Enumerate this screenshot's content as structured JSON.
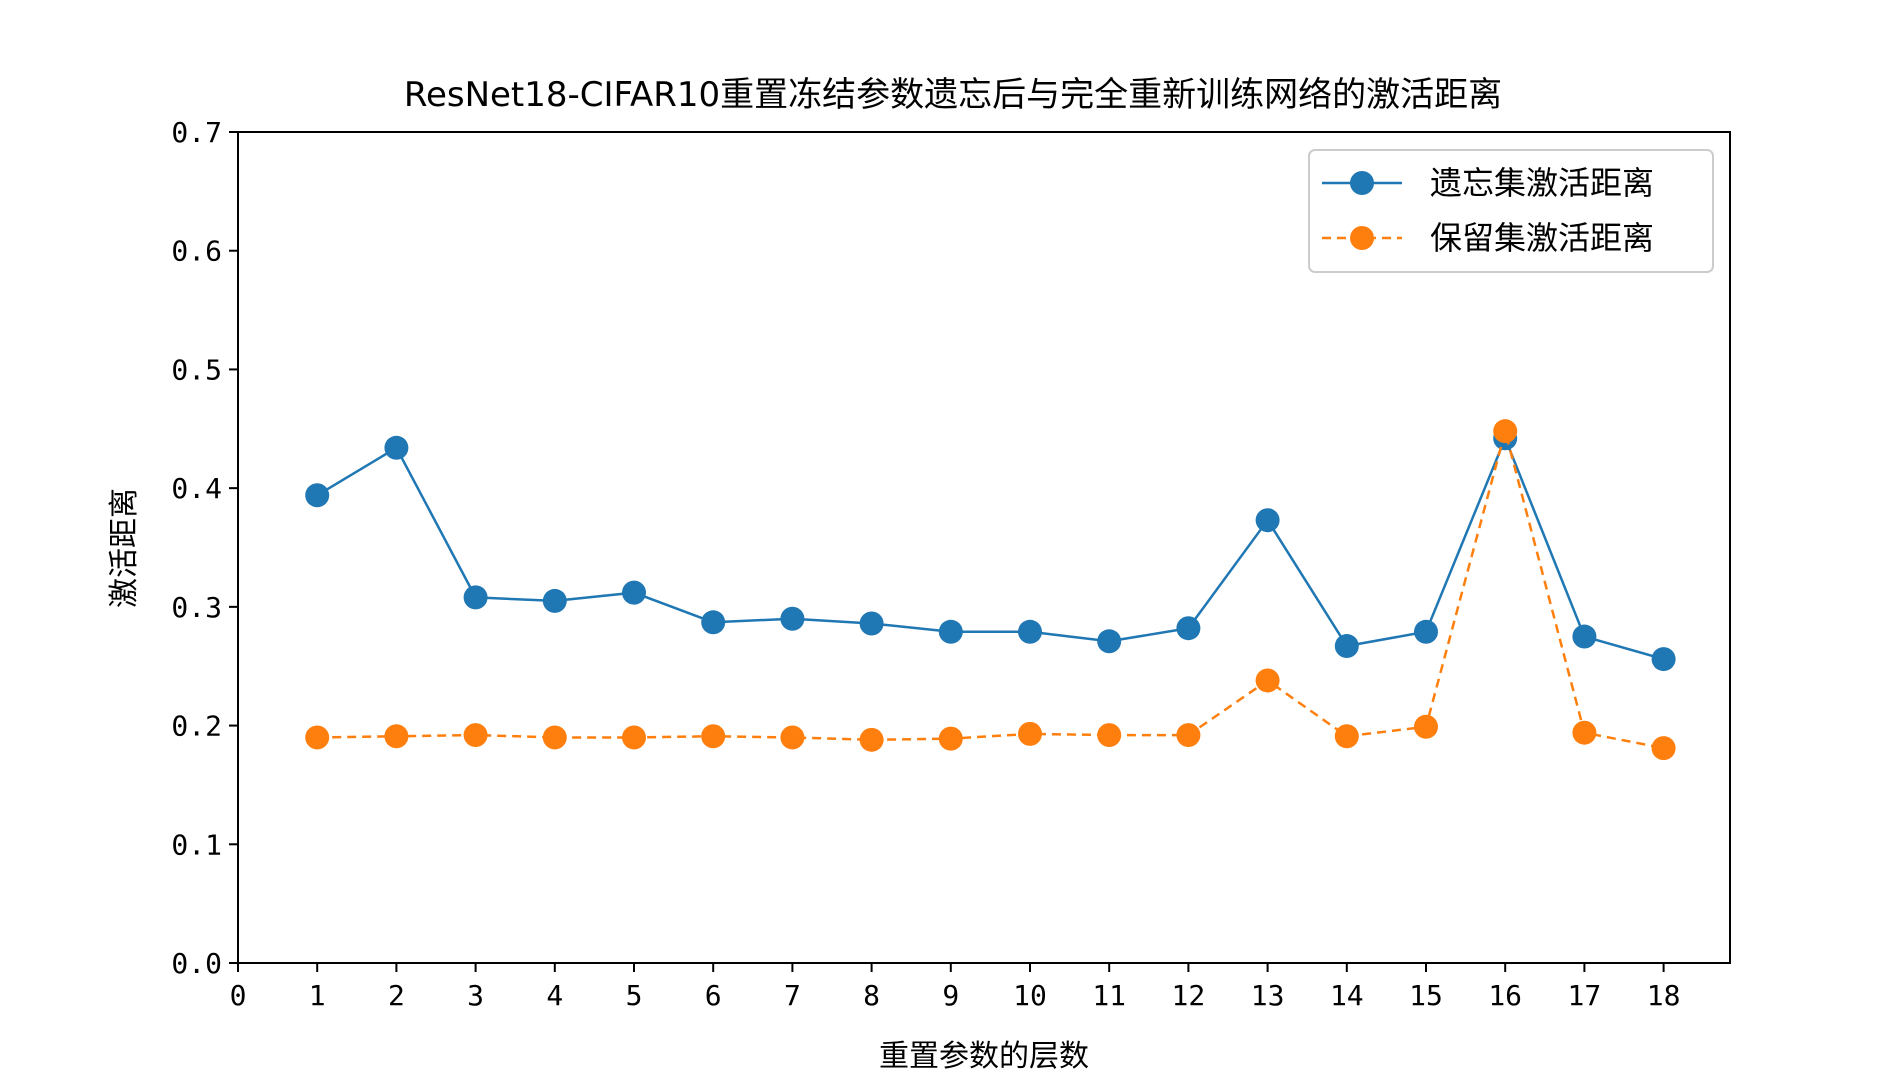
{
  "chart_data": {
    "type": "line",
    "title": "ResNet18-CIFAR10重置冻结参数遗忘后与完全重新训练网络的激活距离",
    "xlabel": "重置参数的层数",
    "ylabel": "激活距离",
    "xlim": [
      0,
      19
    ],
    "ylim": [
      0,
      0.7
    ],
    "xticks": [
      0,
      1,
      2,
      3,
      4,
      5,
      6,
      7,
      8,
      9,
      10,
      11,
      12,
      13,
      14,
      15,
      16,
      17,
      18
    ],
    "yticks": [
      0.0,
      0.1,
      0.2,
      0.3,
      0.4,
      0.5,
      0.6,
      0.7
    ],
    "ytick_labels": [
      "0.0",
      "0.1",
      "0.2",
      "0.3",
      "0.4",
      "0.5",
      "0.6",
      "0.7"
    ],
    "grid": false,
    "legend_position": "top-right",
    "x": [
      1,
      2,
      3,
      4,
      5,
      6,
      7,
      8,
      9,
      10,
      11,
      12,
      13,
      14,
      15,
      16,
      17,
      18
    ],
    "series": [
      {
        "name": "遗忘集激活距离",
        "color": "#1f77b4",
        "line_style": "solid",
        "marker": "circle",
        "values": [
          0.394,
          0.434,
          0.308,
          0.305,
          0.312,
          0.287,
          0.29,
          0.286,
          0.279,
          0.279,
          0.271,
          0.282,
          0.373,
          0.267,
          0.279,
          0.442,
          0.275,
          0.256
        ]
      },
      {
        "name": "保留集激活距离",
        "color": "#ff7f0e",
        "line_style": "dashed",
        "marker": "circle",
        "values": [
          0.19,
          0.191,
          0.192,
          0.19,
          0.19,
          0.191,
          0.19,
          0.188,
          0.189,
          0.193,
          0.192,
          0.192,
          0.238,
          0.191,
          0.199,
          0.448,
          0.194,
          0.181
        ]
      }
    ]
  }
}
